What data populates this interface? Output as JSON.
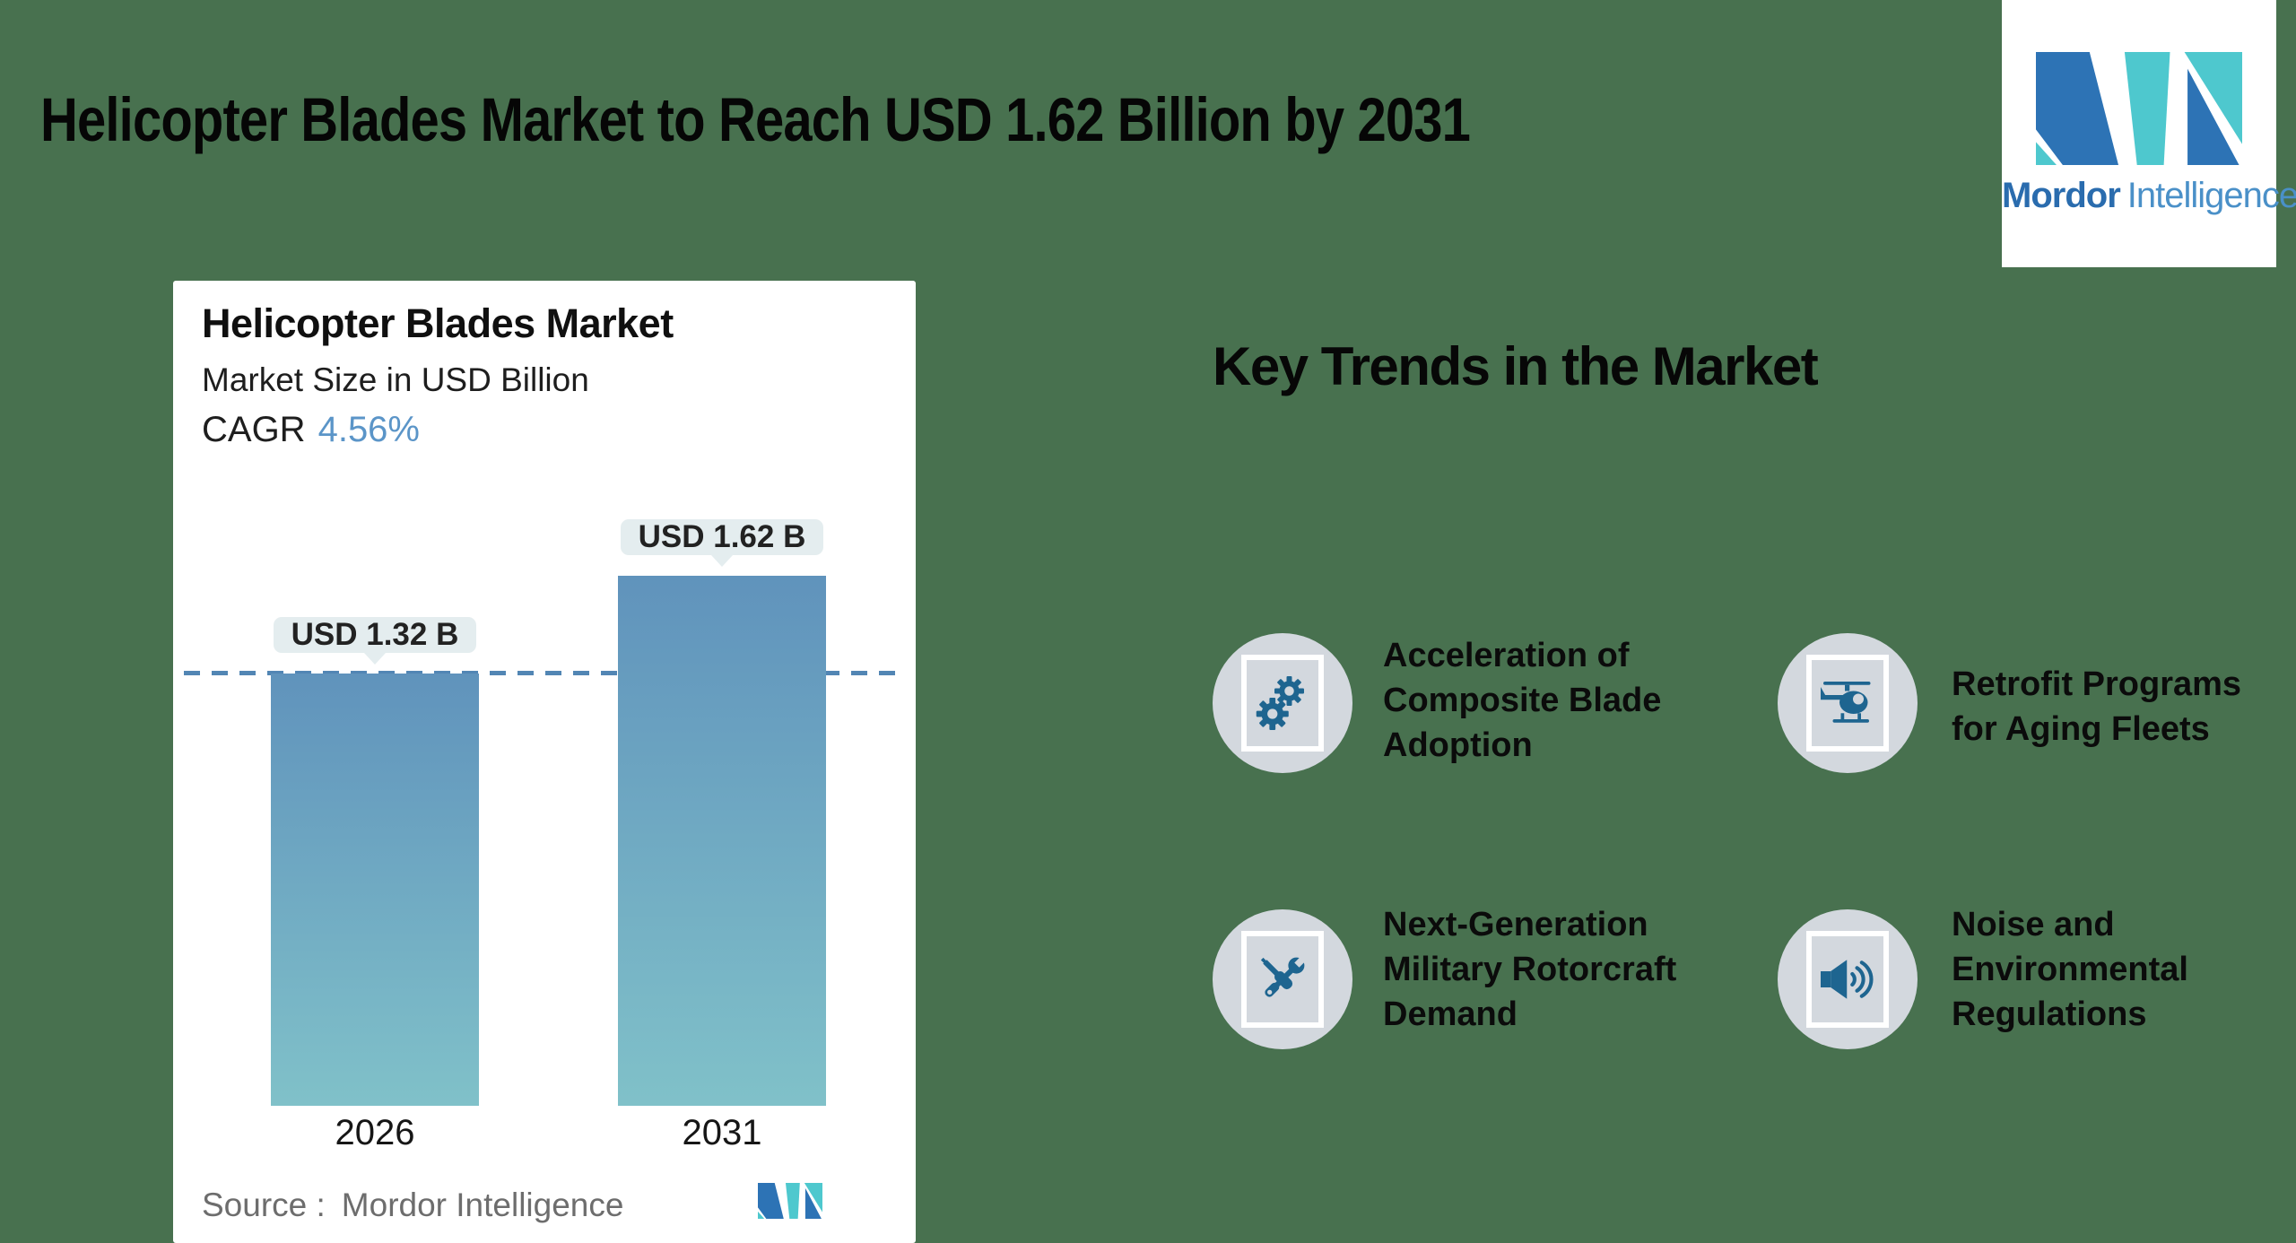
{
  "page": {
    "title": "Helicopter Blades Market to Reach USD 1.62 Billion by 2031",
    "background_color": "#48714f"
  },
  "brand": {
    "name_bold": "Mordor",
    "name_light": "Intelligence",
    "logo_dark_blue": "#2d73b5",
    "logo_teal": "#4ec8ce"
  },
  "chart_card": {
    "title": "Helicopter Blades Market",
    "subtitle": "Market Size in USD Billion",
    "cagr_label": "CAGR",
    "cagr_value": "4.56%",
    "source_label": "Source :",
    "source_value": "Mordor Intelligence",
    "bars": [
      {
        "year": "2026",
        "label": "USD 1.32 B"
      },
      {
        "year": "2031",
        "label": "USD 1.62 B"
      }
    ]
  },
  "chart_data": {
    "type": "bar",
    "title": "Helicopter Blades Market",
    "subtitle": "Market Size in USD Billion",
    "unit": "USD Billion",
    "cagr": "4.56%",
    "categories": [
      "2026",
      "2031"
    ],
    "values": [
      1.32,
      1.62
    ],
    "bar_labels": [
      "USD 1.32 B",
      "USD 1.62 B"
    ],
    "reference_line": 1.32,
    "ylim": [
      0,
      2.5
    ],
    "grid": false,
    "bar_gradient_top": "#6093bc",
    "bar_gradient_bottom": "#80c1c9",
    "reference_line_color": "#5286b4",
    "label_box_color": "#e4edef"
  },
  "key_trends": {
    "heading": "Key Trends in the Market",
    "items": [
      {
        "icon": "gears-icon",
        "lines": [
          "Acceleration of",
          "Composite Blade",
          "Adoption"
        ]
      },
      {
        "icon": "helicopter-icon",
        "lines": [
          "Retrofit Programs",
          "for Aging Fleets"
        ]
      },
      {
        "icon": "tools-icon",
        "lines": [
          "Next-Generation",
          "Military Rotorcraft",
          "Demand"
        ]
      },
      {
        "icon": "speaker-icon",
        "lines": [
          "Noise and",
          "Environmental",
          "Regulations"
        ]
      }
    ]
  },
  "colors": {
    "icon_blue": "#1e6590",
    "icon_circle_gray": "#d3d8de",
    "cagr_accent": "#5b95c8",
    "source_gray": "#6d6d6d"
  }
}
